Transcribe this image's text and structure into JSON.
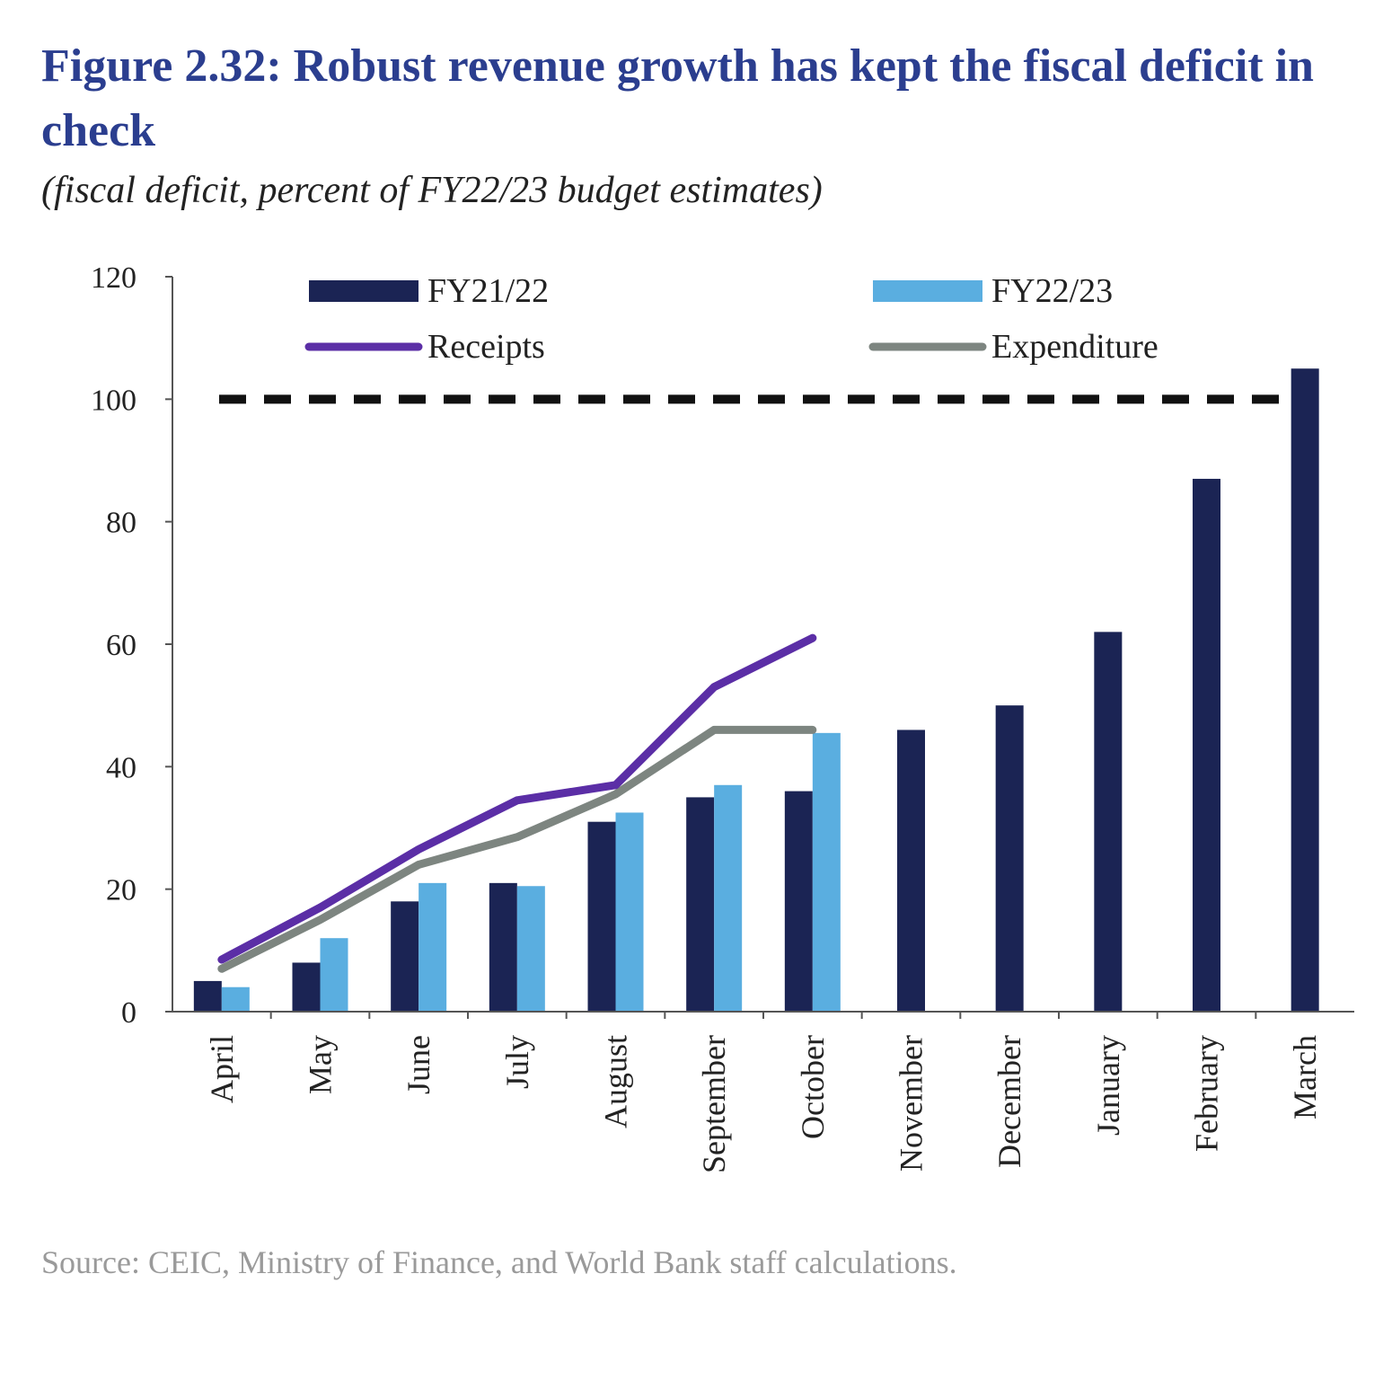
{
  "title": "Figure 2.32: Robust revenue growth has kept the fiscal deficit in check",
  "subtitle": "(fiscal deficit, percent of FY22/23 budget estimates)",
  "source": "Source: CEIC, Ministry of Finance, and World Bank staff calculations.",
  "colors": {
    "fy2122": "#1b2454",
    "fy2223": "#5aaee0",
    "receipts": "#5b2ea6",
    "expenditure": "#7d8580",
    "reference": "#111111",
    "axis": "#555555"
  },
  "chart_data": {
    "type": "bar",
    "ylim": [
      0,
      120
    ],
    "yticks": [
      0,
      20,
      40,
      60,
      80,
      100,
      120
    ],
    "categories": [
      "April",
      "May",
      "June",
      "July",
      "August",
      "September",
      "October",
      "November",
      "December",
      "January",
      "February",
      "March"
    ],
    "series": [
      {
        "name": "FY21/22",
        "kind": "bar",
        "values": [
          5,
          8,
          18,
          21,
          31,
          35,
          36,
          46,
          50,
          62,
          87,
          105
        ]
      },
      {
        "name": "FY22/23",
        "kind": "bar",
        "values": [
          4,
          12,
          21,
          20.5,
          32.5,
          37,
          45.5,
          null,
          null,
          null,
          null,
          null
        ]
      },
      {
        "name": "Receipts",
        "kind": "line",
        "values": [
          8.5,
          17,
          26.5,
          34.5,
          37,
          53,
          61,
          null,
          null,
          null,
          null,
          null
        ]
      },
      {
        "name": "Expenditure",
        "kind": "line",
        "values": [
          7,
          15,
          24,
          28.5,
          35.5,
          46,
          46,
          null,
          null,
          null,
          null,
          null
        ]
      }
    ],
    "reference_line": {
      "value": 100,
      "style": "dashed"
    },
    "legend": [
      "FY21/22",
      "FY22/23",
      "Receipts",
      "Expenditure"
    ],
    "legend_position": "top",
    "xlabel": "",
    "ylabel": ""
  }
}
